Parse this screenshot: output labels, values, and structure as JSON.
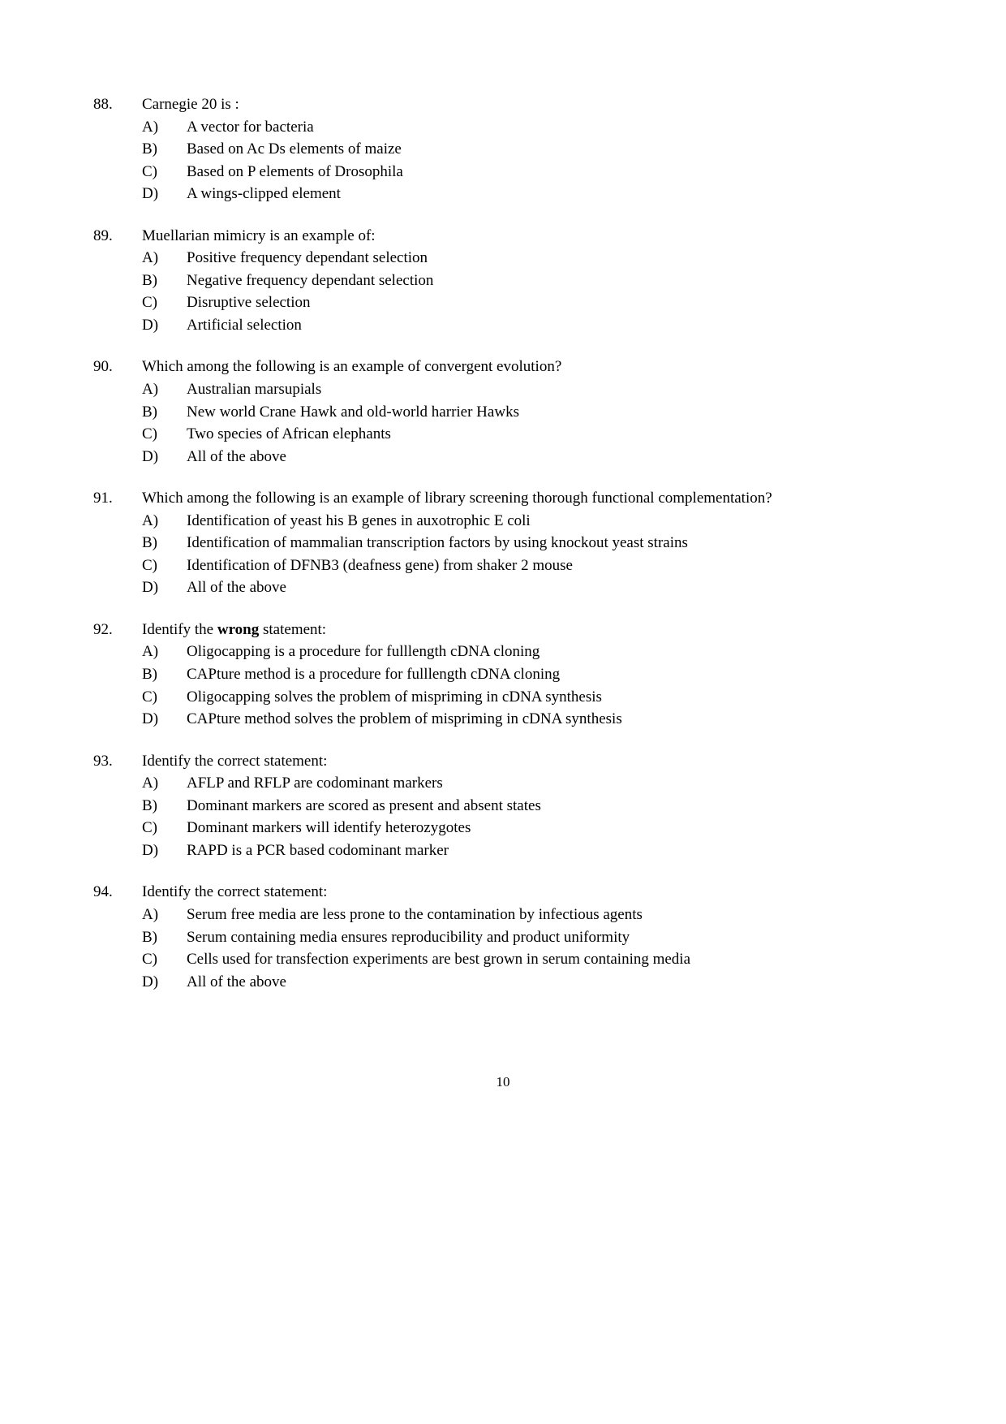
{
  "page_number": "10",
  "questions": [
    {
      "number": "88.",
      "text": "Carnegie 20 is :",
      "text_bold": null,
      "options": [
        {
          "letter": "A)",
          "text": "A vector for bacteria"
        },
        {
          "letter": "B)",
          "text": "Based on Ac Ds elements of maize"
        },
        {
          "letter": "C)",
          "text": "Based on P elements of Drosophila"
        },
        {
          "letter": "D)",
          "text": "A wings-clipped element"
        }
      ]
    },
    {
      "number": "89.",
      "text": "Muellarian mimicry is an example of:",
      "text_bold": null,
      "options": [
        {
          "letter": "A)",
          "text": "Positive frequency dependant selection"
        },
        {
          "letter": "B)",
          "text": "Negative frequency dependant selection"
        },
        {
          "letter": "C)",
          "text": "Disruptive selection"
        },
        {
          "letter": "D)",
          "text": "Artificial selection"
        }
      ]
    },
    {
      "number": "90.",
      "text": "Which among the following is an example of convergent evolution?",
      "text_bold": null,
      "options": [
        {
          "letter": "A)",
          "text": "Australian marsupials"
        },
        {
          "letter": "B)",
          "text": "New world Crane Hawk and old-world harrier Hawks"
        },
        {
          "letter": "C)",
          "text": "Two species of African elephants"
        },
        {
          "letter": "D)",
          "text": "All of the above"
        }
      ]
    },
    {
      "number": "91.",
      "text": "Which among the following is an example of library screening thorough functional complementation?",
      "text_bold": null,
      "options": [
        {
          "letter": "A)",
          "text": "Identification of yeast his B genes in auxotrophic E coli"
        },
        {
          "letter": "B)",
          "text": "Identification of mammalian transcription factors by using knockout yeast strains"
        },
        {
          "letter": "C)",
          "text": "Identification of DFNB3 (deafness gene) from shaker 2 mouse"
        },
        {
          "letter": "D)",
          "text": "All of the above"
        }
      ]
    },
    {
      "number": "92.",
      "text_pre": "Identify the ",
      "text_bold": "wrong",
      "text_post": "  statement:",
      "options": [
        {
          "letter": "A)",
          "text": "Oligocapping is a procedure for fulllength cDNA cloning"
        },
        {
          "letter": "B)",
          "text": "CAPture method is a procedure for fulllength cDNA cloning"
        },
        {
          "letter": "C)",
          "text": "Oligocapping solves the problem of mispriming in cDNA synthesis"
        },
        {
          "letter": "D)",
          "text": "CAPture method solves the problem of mispriming in cDNA synthesis"
        }
      ]
    },
    {
      "number": "93.",
      "text": "Identify the correct statement:",
      "text_bold": null,
      "options": [
        {
          "letter": "A)",
          "text": "AFLP and RFLP are codominant markers"
        },
        {
          "letter": "B)",
          "text": "Dominant markers are scored as present and absent states"
        },
        {
          "letter": "C)",
          "text": "Dominant markers will identify heterozygotes"
        },
        {
          "letter": "D)",
          "text": "RAPD is a PCR based codominant marker"
        }
      ]
    },
    {
      "number": "94.",
      "text": "Identify the correct statement:",
      "text_bold": null,
      "options": [
        {
          "letter": "A)",
          "text": "Serum free media are less prone to the contamination by infectious agents"
        },
        {
          "letter": "B)",
          "text": "Serum containing media ensures reproducibility and product uniformity"
        },
        {
          "letter": "C)",
          "text": "Cells used for transfection experiments are best grown in serum containing media"
        },
        {
          "letter": "D)",
          "text": "All of the above"
        }
      ]
    }
  ]
}
